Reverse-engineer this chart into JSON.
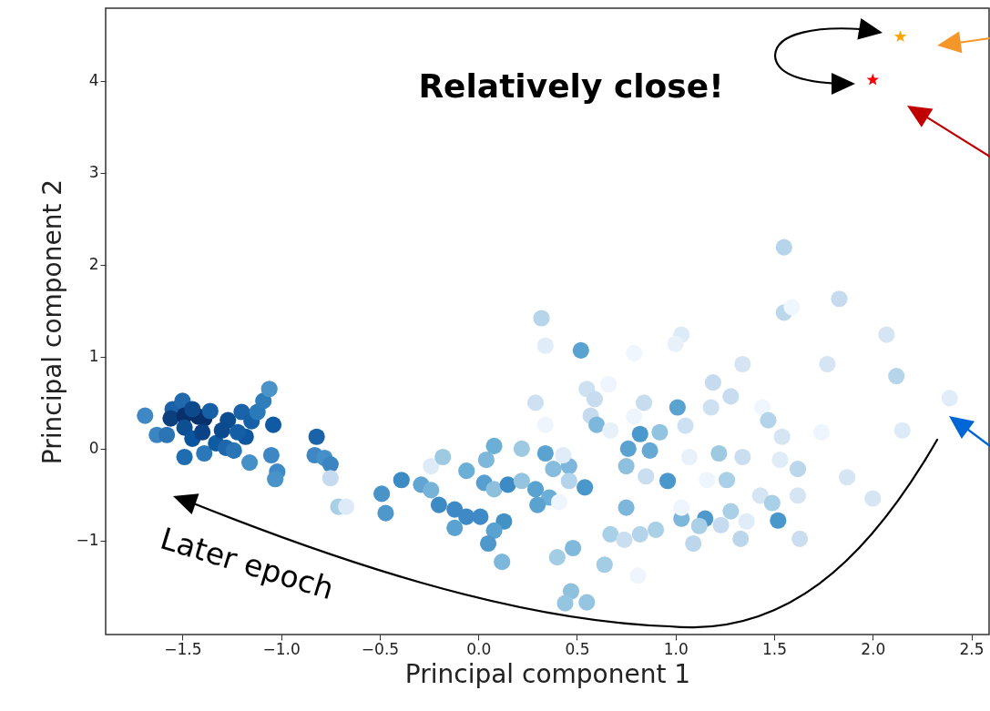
{
  "chart_data": {
    "type": "scatter",
    "xlabel": "Principal component 1",
    "ylabel": "Principal component 2",
    "xlim": [
      -1.89,
      2.59
    ],
    "ylim": [
      -2.02,
      4.79
    ],
    "xticks": [
      {
        "value": -1.5,
        "label": "−1.5"
      },
      {
        "value": -1.0,
        "label": "−1.0"
      },
      {
        "value": -0.5,
        "label": "−0.5"
      },
      {
        "value": 0,
        "label": "0.0"
      },
      0.5,
      {
        "value": 1.0,
        "label": "1.0"
      },
      1.5,
      {
        "value": 2.0,
        "label": "2.0"
      },
      2.5
    ],
    "yticks": [
      {
        "value": -1,
        "label": "−1"
      },
      0,
      1,
      2,
      3,
      4
    ],
    "annotations": [
      "Relatively close!",
      "Later epoch"
    ],
    "series": [
      {
        "marker": "circle",
        "x": [
          -1.69,
          -1.63,
          -1.58,
          -1.55,
          -1.5,
          -1.56,
          -1.49,
          -1.42,
          -1.39,
          -1.45,
          -1.36,
          -1.49,
          -1.45,
          -1.49,
          -1.39,
          -1.33,
          -1.27,
          -1.28,
          -1.24,
          -1.2,
          -1.18,
          -1.15,
          -1.16,
          -1.12,
          -1.04,
          -1.09,
          -1.06,
          -1.05,
          -1.02,
          -1.03,
          -1.3,
          -1.4,
          -1.22,
          -0.82,
          -0.83,
          -0.78,
          -0.75,
          -0.75,
          -0.71,
          -0.67,
          -0.49,
          -0.47,
          0.32,
          0.34,
          0.52,
          0.79,
          0.55,
          0.59,
          0.66,
          0.29,
          0.34,
          0.57,
          0.6,
          0.67,
          0.79,
          0.84,
          1.01,
          0.92,
          0.82,
          0.76,
          0.87,
          0.75,
          0.85,
          0.96,
          0.75,
          0.67,
          0.82,
          0.9,
          0.74,
          0.48,
          0.4,
          0.64,
          0.81,
          0.47,
          0.44,
          0.55,
          -0.39,
          -0.29,
          -0.24,
          -0.24,
          -0.18,
          -0.2,
          -0.12,
          -0.06,
          0.01,
          -0.12,
          -0.06,
          0.04,
          0.08,
          0.03,
          0.08,
          0.15,
          0.22,
          0.22,
          0.29,
          0.36,
          0.3,
          0.13,
          0.08,
          0.05,
          0.12,
          0.34,
          0.38,
          0.46,
          0.46,
          0.54,
          0.41,
          0.43,
          1.55,
          1.55,
          1.59,
          1.83,
          2.07,
          2.12,
          2.39,
          2.15,
          1.77,
          1.34,
          1.03,
          1.0,
          1.19,
          1.28,
          1.18,
          1.05,
          1.44,
          1.47,
          1.54,
          1.74,
          1.07,
          1.22,
          1.34,
          1.53,
          1.62,
          1.87,
          1.16,
          1.26,
          1.43,
          1.49,
          1.62,
          2.0,
          1.52,
          1.28,
          1.36,
          1.23,
          1.15,
          1.03,
          1.12,
          1.09,
          1.33,
          1.63,
          1.03
        ],
        "values": [
          0.36,
          0.15,
          0.15,
          0.43,
          0.52,
          0.33,
          0.36,
          0.35,
          0.33,
          0.43,
          0.41,
          0.23,
          0.11,
          -0.09,
          -0.05,
          0.06,
          0.31,
          0.01,
          -0.02,
          0.4,
          0.13,
          0.3,
          -0.15,
          0.4,
          0.26,
          0.52,
          0.65,
          -0.07,
          -0.25,
          -0.33,
          0.2,
          0.18,
          0.18,
          0.13,
          -0.07,
          -0.1,
          -0.17,
          -0.32,
          -0.63,
          -0.63,
          -0.49,
          -0.7,
          1.42,
          1.12,
          1.07,
          1.04,
          0.65,
          0.54,
          0.7,
          0.5,
          0.26,
          0.36,
          0.26,
          0.2,
          0.35,
          0.5,
          0.45,
          0.18,
          0.16,
          0.0,
          -0.02,
          -0.19,
          -0.3,
          -0.35,
          -0.64,
          -0.93,
          -0.93,
          -0.88,
          -0.99,
          -1.08,
          -1.18,
          -1.26,
          -1.38,
          -1.55,
          -1.68,
          -1.67,
          -0.34,
          -0.39,
          -0.45,
          -0.19,
          -0.09,
          -0.61,
          -0.66,
          -0.74,
          -0.74,
          -0.86,
          -0.24,
          -0.12,
          0.03,
          -0.37,
          -0.44,
          -0.39,
          -0.35,
          0.0,
          -0.44,
          -0.53,
          -0.61,
          -0.79,
          -0.89,
          -1.03,
          -1.23,
          -0.05,
          -0.22,
          -0.19,
          -0.35,
          -0.42,
          -0.58,
          -0.07,
          2.19,
          1.48,
          1.54,
          1.63,
          1.24,
          0.79,
          0.55,
          0.2,
          0.92,
          0.92,
          1.24,
          1.14,
          0.72,
          0.57,
          0.45,
          0.25,
          0.45,
          0.31,
          0.13,
          0.18,
          -0.09,
          -0.05,
          -0.09,
          -0.12,
          -0.22,
          -0.31,
          -0.34,
          -0.34,
          -0.51,
          -0.59,
          -0.51,
          -0.54,
          -0.78,
          -0.68,
          -0.79,
          -0.83,
          -0.76,
          -0.76,
          -0.84,
          -1.03,
          -0.98,
          -0.98,
          -0.64
        ],
        "colors": [
          "#3f88c5",
          "#3a85c2",
          "#2b75b5",
          "#1c62a8",
          "#2168ad",
          "#0b3f7e",
          "#08306b",
          "#08306b",
          "#08306b",
          "#0d4a8c",
          "#1660a6",
          "#0e4f91",
          "#0b559f",
          "#1f6cb0",
          "#2a78b8",
          "#105ba0",
          "#0d4d8f",
          "#1e67ac",
          "#2a75b4",
          "#1a63a8",
          "#0e57a0",
          "#1560a6",
          "#4690c8",
          "#2a79b9",
          "#0f5aa3",
          "#2e7ebc",
          "#4b94c9",
          "#3d88c4",
          "#3f8ac6",
          "#4a93c9",
          "#0b4a8f",
          "#0a4285",
          "#135ea4",
          "#1a63a8",
          "#3d88c4",
          "#4690c8",
          "#3a85c2",
          "#c6dbef",
          "#a8cfe6",
          "#dcebf7",
          "#4a93c9",
          "#4f98cb",
          "#b6d4ea",
          "#e0edf8",
          "#5aa3d1",
          "#f0f6fd",
          "#cde1f2",
          "#c8dcf0",
          "#eef5fc",
          "#cde1f2",
          "#eef5fc",
          "#c6dbef",
          "#7db8dc",
          "#e8f1fa",
          "#eef5fc",
          "#c8dcf0",
          "#5aa3d1",
          "#91c4e0",
          "#4b98cc",
          "#5aa3d1",
          "#65a9d4",
          "#8fc0de",
          "#cadef0",
          "#4a97cb",
          "#7db8dc",
          "#a9d0e6",
          "#b3d4ea",
          "#a9d0e6",
          "#cadef0",
          "#80b9dc",
          "#a3cde5",
          "#a3cde5",
          "#eef5fc",
          "#8fc0de",
          "#95c5e0",
          "#95c5e0",
          "#3d8bc4",
          "#63a5d2",
          "#76b3d8",
          "#deebf7",
          "#9ecae1",
          "#3d8bc4",
          "#3f8ac6",
          "#3f8ac6",
          "#3f8ac6",
          "#5aa3d1",
          "#6baed6",
          "#7fb7da",
          "#6baed6",
          "#569fd0",
          "#8ec0de",
          "#3d8bc4",
          "#94c4df",
          "#9ecae1",
          "#5aa3d1",
          "#6baed6",
          "#5aa3d1",
          "#4292c6",
          "#5aa3d1",
          "#4f98cb",
          "#7db8dc",
          "#5aa3d1",
          "#86bcdd",
          "#7db8dc",
          "#b3d4ea",
          "#4a97cb",
          "#eef5fc",
          "#e0edf8",
          "#b6d4ea",
          "#bcd7ec",
          "#f0f6fd",
          "#c6dbef",
          "#d5e5f4",
          "#b6d4ea",
          "#e0edf8",
          "#dcebf7",
          "#d5e5f4",
          "#d5e5f4",
          "#dcebf7",
          "#e8f1fa",
          "#c6dbef",
          "#c8dcf0",
          "#cde1f2",
          "#cde1f2",
          "#f0f6fd",
          "#b3d4ea",
          "#d5e5f4",
          "#eef5fc",
          "#e8f1fa",
          "#9ecae1",
          "#cadef0",
          "#e0edf8",
          "#bcd7ec",
          "#d5e5f4",
          "#eef5fc",
          "#a9d0e6",
          "#d5e5f4",
          "#a9d0e6",
          "#d5e5f4",
          "#d5e5f4",
          "#4a97cb",
          "#a9d0e6",
          "#e0edf8",
          "#c6dbef",
          "#4f98cb",
          "#7db8dc",
          "#a9d0e6",
          "#bcd7ec",
          "#bcd7ec",
          "#cadef0",
          "#eef5fc"
        ]
      },
      {
        "marker": "star",
        "x": [
          2.14
        ],
        "values": [
          4.48
        ],
        "color": "#ffa500"
      },
      {
        "marker": "star",
        "x": [
          2.0
        ],
        "values": [
          4.01
        ],
        "color": "#ff0000"
      }
    ]
  }
}
